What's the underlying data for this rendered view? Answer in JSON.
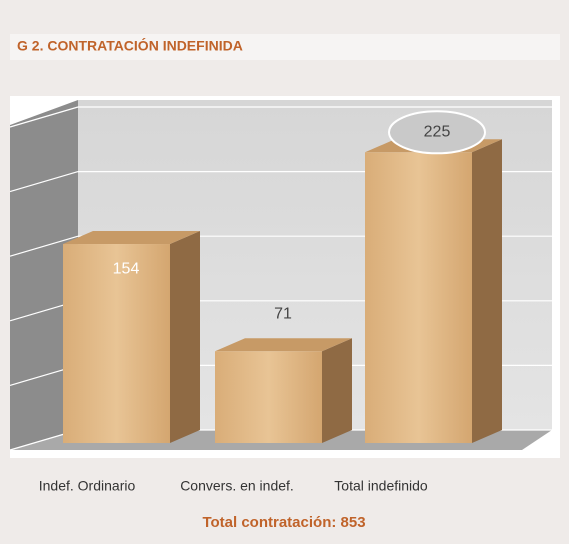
{
  "chart_data": {
    "type": "bar3d",
    "title": "G 2. CONTRATACIÓN INDEFINIDA",
    "categories": [
      "Indef. Ordinario",
      "Convers. en indef.",
      "Total indefinido"
    ],
    "values": [
      154,
      71,
      225
    ],
    "color": "#d9ad78",
    "ylim": [
      0,
      250
    ],
    "yticks": [
      0,
      50,
      100,
      150,
      200,
      250
    ],
    "grid": true,
    "annotation": "Total contratación: 853"
  }
}
